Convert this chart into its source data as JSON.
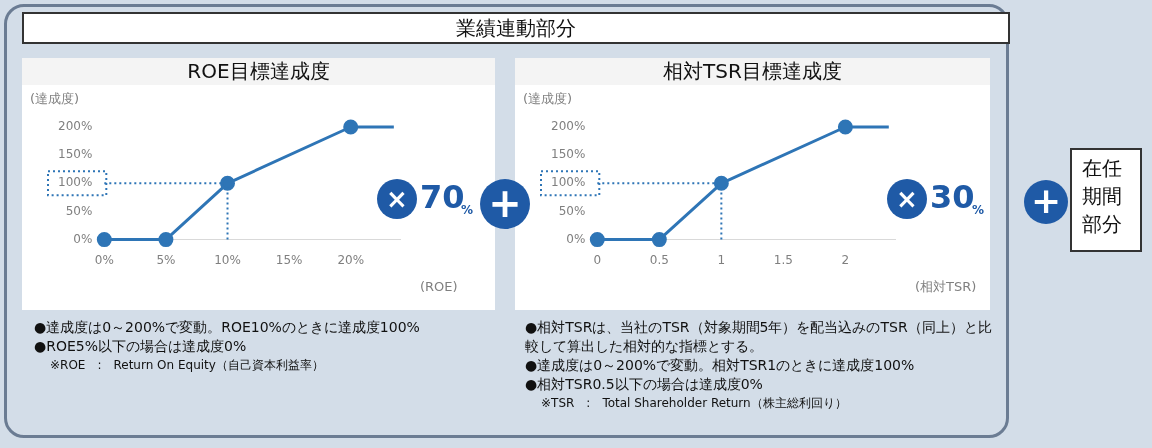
{
  "chart_data": [
    {
      "type": "line",
      "title": "ROE目標達成度",
      "xlabel": "(ROE)",
      "ylabel": "(達成度)",
      "xlim": [
        0,
        24
      ],
      "ylim": [
        0,
        200
      ],
      "xticks": [
        {
          "value": 0,
          "label": "0%"
        },
        {
          "value": 5,
          "label": "5%"
        },
        {
          "value": 10,
          "label": "10%"
        },
        {
          "value": 15,
          "label": "15%"
        },
        {
          "value": 20,
          "label": "20%"
        }
      ],
      "yticks": [
        {
          "value": 0,
          "label": "0%"
        },
        {
          "value": 50,
          "label": "50%"
        },
        {
          "value": 100,
          "label": "100%"
        },
        {
          "value": 150,
          "label": "150%"
        },
        {
          "value": 200,
          "label": "200%"
        }
      ],
      "marker": "circle",
      "series": [
        {
          "color": "#2e75b6",
          "x": [
            0,
            5,
            10,
            20
          ],
          "values": [
            0,
            0,
            100,
            200
          ]
        },
        {
          "color": "#2e75b6",
          "x": [
            20,
            23.5
          ],
          "values": [
            200,
            200
          ],
          "marker": "none"
        }
      ],
      "ref_lines": [
        {
          "axis": "y",
          "value": 100,
          "color": "#2e75b6",
          "line_style": "dotted"
        },
        {
          "axis": "x",
          "value": 10,
          "color": "#2e75b6",
          "line_style": "dotted"
        }
      ],
      "annotations": [
        "●達成度は0～200%で変動。ROE10%のときに達成度100%",
        "●ROE5%以下の場合は達成度0%",
        "※ROE　:　Return On Equity（自己資本利益率）"
      ]
    },
    {
      "type": "line",
      "title": "相対TSR目標達成度",
      "xlabel": "(相対TSR)",
      "ylabel": "(達成度)",
      "xlim": [
        0,
        2.4
      ],
      "ylim": [
        0,
        200
      ],
      "xticks": [
        0,
        0.5,
        1,
        1.5,
        2
      ],
      "yticks": [
        {
          "value": 0,
          "label": "0%"
        },
        {
          "value": 50,
          "label": "50%"
        },
        {
          "value": 100,
          "label": "100%"
        },
        {
          "value": 150,
          "label": "150%"
        },
        {
          "value": 200,
          "label": "200%"
        }
      ],
      "marker": "circle",
      "series": [
        {
          "color": "#2e75b6",
          "x": [
            0,
            0.5,
            1,
            2
          ],
          "values": [
            0,
            0,
            100,
            200
          ]
        },
        {
          "color": "#2e75b6",
          "x": [
            2,
            2.35
          ],
          "values": [
            200,
            200
          ],
          "marker": "none"
        }
      ],
      "ref_lines": [
        {
          "axis": "y",
          "value": 100,
          "color": "#2e75b6",
          "line_style": "dotted"
        },
        {
          "axis": "x",
          "value": 1,
          "color": "#2e75b6",
          "line_style": "dotted"
        }
      ],
      "annotations": [
        "●相対TSRは、当社のTSR（対象期間5年）を配当込みのTSR（同上）と比較して算出した相対的な指標とする。",
        "●達成度は0～200%で変動。相対TSR1のときに達成度100%",
        "●相対TSR0.5以下の場合は達成度0%",
        "※TSR　:　Total Shareholder Return（株主総利回り）"
      ]
    },
    {
      "type": "other",
      "annotations": [
        "業績連動部分",
        "×",
        "70",
        "%",
        "+",
        "×",
        "30",
        "%",
        "+",
        "在任期間部分"
      ]
    }
  ]
}
